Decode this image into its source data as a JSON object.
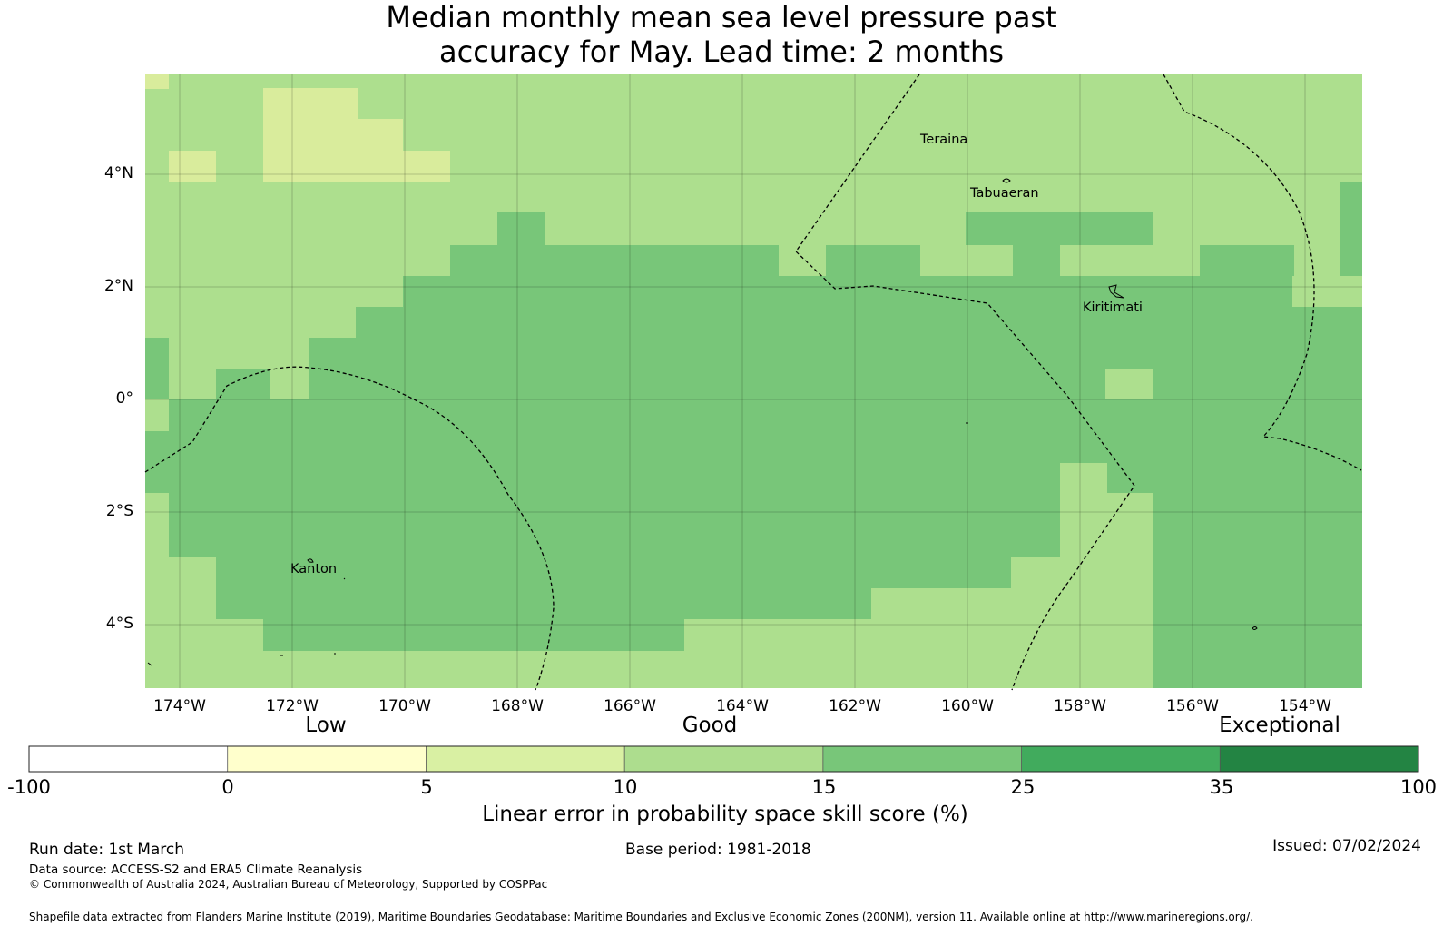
{
  "title": {
    "line1": "Median monthly mean sea level pressure past",
    "line2": "accuracy for May. Lead time: 2 months"
  },
  "map": {
    "lat_labels": [
      "4°N",
      "2°N",
      "0°",
      "2°S",
      "4°S"
    ],
    "lon_labels": [
      "174°W",
      "172°W",
      "170°W",
      "168°W",
      "166°W",
      "164°W",
      "162°W",
      "160°W",
      "158°W",
      "156°W",
      "154°W"
    ],
    "places": [
      "Teraina",
      "Tabuaeran",
      "Kiritimati",
      "Kanton"
    ],
    "colors": {
      "lightest": "#d9ec9c",
      "light": "#addf8e",
      "medium": "#78c679",
      "water_bg": "#ffffff"
    }
  },
  "colorbar": {
    "categories": [
      "Low",
      "Good",
      "Exceptional"
    ],
    "ticks": [
      "-100",
      "0",
      "5",
      "10",
      "15",
      "25",
      "35",
      "100"
    ],
    "colors": [
      "#ffffff",
      "#ffffcc",
      "#d9f0a3",
      "#addd8e",
      "#78c679",
      "#41ab5d",
      "#238443"
    ],
    "title": "Linear error in probability space skill score (%)"
  },
  "footer": {
    "run_date": "Run date: 1st March",
    "base_period": "Base period: 1981-2018",
    "issued": "Issued: 07/02/2024",
    "data_source": "Data source: ACCESS-S2 and ERA5 Climate Reanalysis",
    "copyright": "© Commonwealth of Australia 2024, Australian Bureau of Meteorology, Supported by COSPPac",
    "shapefile": "Shapefile data extracted from Flanders Marine Institute (2019), Maritime Boundaries Geodatabase: Maritime Boundaries and Exclusive Economic Zones (200NM), version 11. Available online at http://www.marineregions.org/."
  }
}
